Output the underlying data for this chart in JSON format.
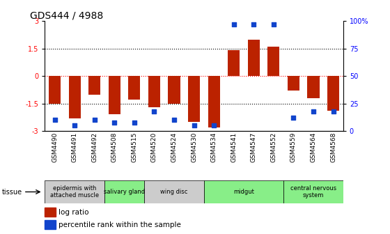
{
  "title": "GDS444 / 4988",
  "samples": [
    "GSM4490",
    "GSM4491",
    "GSM4492",
    "GSM4508",
    "GSM4515",
    "GSM4520",
    "GSM4524",
    "GSM4530",
    "GSM4534",
    "GSM4541",
    "GSM4547",
    "GSM4552",
    "GSM4559",
    "GSM4564",
    "GSM4568"
  ],
  "log_ratio": [
    -1.5,
    -2.3,
    -1.0,
    -2.1,
    -1.3,
    -1.7,
    -1.5,
    -2.5,
    -2.8,
    1.4,
    2.0,
    1.6,
    -0.8,
    -1.2,
    -1.9
  ],
  "percentile": [
    10,
    5,
    10,
    8,
    8,
    18,
    10,
    5,
    5,
    97,
    97,
    97,
    12,
    18,
    18
  ],
  "bar_color": "#bb2200",
  "dot_color": "#1144cc",
  "ylim_min": -3,
  "ylim_max": 3,
  "yticks_left": [
    -3,
    -1.5,
    0,
    1.5,
    3
  ],
  "yticks_right_vals": [
    -3,
    -1.5,
    0,
    1.5,
    3
  ],
  "yticks_right_labels": [
    "0",
    "25",
    "50",
    "75",
    "100%"
  ],
  "tissues": [
    {
      "label": "epidermis with\nattached muscle",
      "start": 0,
      "end": 3,
      "color": "#cccccc"
    },
    {
      "label": "salivary gland",
      "start": 3,
      "end": 5,
      "color": "#88ee88"
    },
    {
      "label": "wing disc",
      "start": 5,
      "end": 8,
      "color": "#cccccc"
    },
    {
      "label": "midgut",
      "start": 8,
      "end": 12,
      "color": "#88ee88"
    },
    {
      "label": "central nervous\nsystem",
      "start": 12,
      "end": 15,
      "color": "#88ee88"
    }
  ],
  "legend_red_label": "log ratio",
  "legend_blue_label": "percentile rank within the sample",
  "tissue_label": "tissue"
}
